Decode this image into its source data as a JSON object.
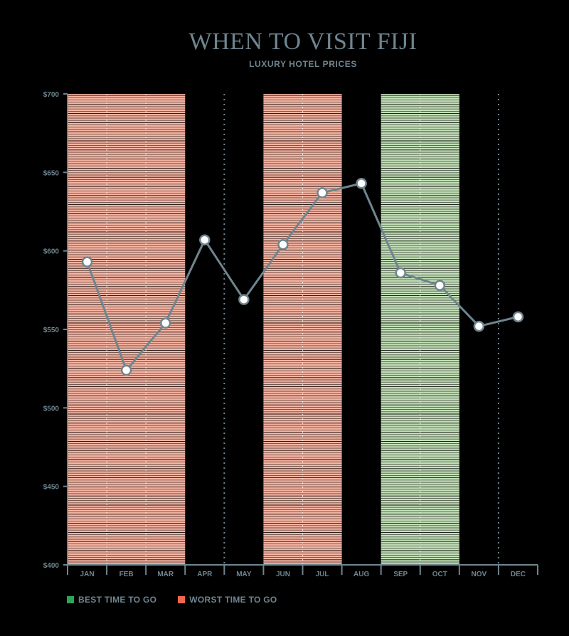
{
  "chart_data": {
    "type": "line",
    "title": "WHEN TO VISIT FIJI",
    "subtitle": "LUXURY HOTEL PRICES",
    "categories": [
      "JAN",
      "FEB",
      "MAR",
      "APR",
      "MAY",
      "JUN",
      "JUL",
      "AUG",
      "SEP",
      "OCT",
      "NOV",
      "DEC"
    ],
    "series": [
      {
        "values": [
          593,
          524,
          554,
          607,
          569,
          604,
          637,
          643,
          586,
          578,
          552,
          558
        ]
      }
    ],
    "y_ticks": [
      {
        "value": 400,
        "label": "$400"
      },
      {
        "value": 450,
        "label": "$450"
      },
      {
        "value": 500,
        "label": "$500"
      },
      {
        "value": 550,
        "label": "$550"
      },
      {
        "value": 600,
        "label": "$600"
      },
      {
        "value": 650,
        "label": "$650"
      },
      {
        "value": 700,
        "label": "$700"
      }
    ],
    "ylim": [
      400,
      700
    ],
    "xlabel": "",
    "ylabel": "",
    "bands": [
      {
        "kind": "worst",
        "start": "JAN",
        "end": "MAR"
      },
      {
        "kind": "worst",
        "start": "JUN",
        "end": "JUL"
      },
      {
        "kind": "best",
        "start": "SEP",
        "end": "OCT"
      }
    ],
    "colors": {
      "line": "#6f8590",
      "best": "#c3e0b8",
      "worst": "#f9b5a3",
      "best_swatch": "#2ea557",
      "worst_swatch": "#f2654f",
      "axis": "#6f8590"
    },
    "legend": {
      "placement": "bottom-left",
      "items": [
        {
          "label": "BEST TIME TO GO",
          "kind": "best"
        },
        {
          "label": "WORST TIME TO GO",
          "kind": "worst"
        }
      ]
    }
  }
}
